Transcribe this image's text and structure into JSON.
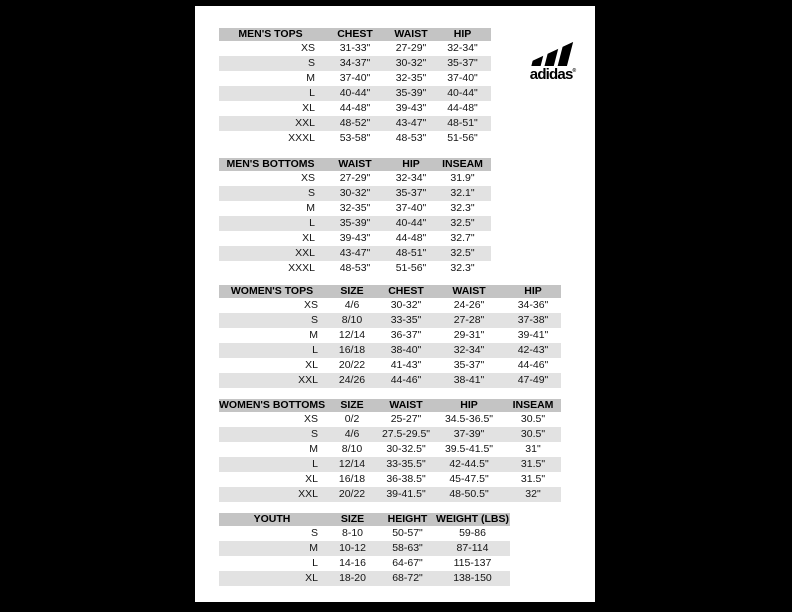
{
  "page": {
    "background_color": "#000000",
    "paper_color": "#ffffff",
    "header_bg": "#c4c4c4",
    "stripe_bg": "#e2e2e2",
    "text_color": "#141414"
  },
  "logo": {
    "brand": "adidas",
    "registered_mark": "®",
    "color": "#000000"
  },
  "tables": [
    {
      "id": "mens-tops",
      "headers": [
        "MEN'S TOPS",
        "CHEST",
        "WAIST",
        "HIP"
      ],
      "rows": [
        [
          "XS",
          "31-33\"",
          "27-29\"",
          "32-34\""
        ],
        [
          "S",
          "34-37\"",
          "30-32\"",
          "35-37\""
        ],
        [
          "M",
          "37-40\"",
          "32-35\"",
          "37-40\""
        ],
        [
          "L",
          "40-44\"",
          "35-39\"",
          "40-44\""
        ],
        [
          "XL",
          "44-48\"",
          "39-43\"",
          "44-48\""
        ],
        [
          "XXL",
          "48-52\"",
          "43-47\"",
          "48-51\""
        ],
        [
          "XXXL",
          "53-58\"",
          "48-53\"",
          "51-56\""
        ]
      ]
    },
    {
      "id": "mens-bottoms",
      "headers": [
        "MEN'S BOTTOMS",
        "WAIST",
        "HIP",
        "INSEAM"
      ],
      "rows": [
        [
          "XS",
          "27-29\"",
          "32-34\"",
          "31.9\""
        ],
        [
          "S",
          "30-32\"",
          "35-37\"",
          "32.1\""
        ],
        [
          "M",
          "32-35\"",
          "37-40\"",
          "32.3\""
        ],
        [
          "L",
          "35-39\"",
          "40-44\"",
          "32.5\""
        ],
        [
          "XL",
          "39-43\"",
          "44-48\"",
          "32.7\""
        ],
        [
          "XXL",
          "43-47\"",
          "48-51\"",
          "32.5\""
        ],
        [
          "XXXL",
          "48-53\"",
          "51-56\"",
          "32.3\""
        ]
      ]
    },
    {
      "id": "womens-tops",
      "headers": [
        "WOMEN'S TOPS",
        "SIZE",
        "CHEST",
        "WAIST",
        "HIP"
      ],
      "rows": [
        [
          "XS",
          "4/6",
          "30-32\"",
          "24-26\"",
          "34-36\""
        ],
        [
          "S",
          "8/10",
          "33-35\"",
          "27-28\"",
          "37-38\""
        ],
        [
          "M",
          "12/14",
          "36-37\"",
          "29-31\"",
          "39-41\""
        ],
        [
          "L",
          "16/18",
          "38-40\"",
          "32-34\"",
          "42-43\""
        ],
        [
          "XL",
          "20/22",
          "41-43\"",
          "35-37\"",
          "44-46\""
        ],
        [
          "XXL",
          "24/26",
          "44-46\"",
          "38-41\"",
          "47-49\""
        ]
      ]
    },
    {
      "id": "womens-bottoms",
      "headers": [
        "WOMEN'S BOTTOMS",
        "SIZE",
        "WAIST",
        "HIP",
        "INSEAM"
      ],
      "rows": [
        [
          "XS",
          "0/2",
          "25-27\"",
          "34.5-36.5\"",
          "30.5\""
        ],
        [
          "S",
          "4/6",
          "27.5-29.5\"",
          "37-39\"",
          "30.5\""
        ],
        [
          "M",
          "8/10",
          "30-32.5\"",
          "39.5-41.5\"",
          "31\""
        ],
        [
          "L",
          "12/14",
          "33-35.5\"",
          "42-44.5\"",
          "31.5\""
        ],
        [
          "XL",
          "16/18",
          "36-38.5\"",
          "45-47.5\"",
          "31.5\""
        ],
        [
          "XXL",
          "20/22",
          "39-41.5\"",
          "48-50.5\"",
          "32\""
        ]
      ]
    },
    {
      "id": "youth",
      "headers": [
        "YOUTH",
        "SIZE",
        "HEIGHT",
        "WEIGHT (LBS)"
      ],
      "rows": [
        [
          "S",
          "8-10",
          "50-57\"",
          "59-86"
        ],
        [
          "M",
          "10-12",
          "58-63\"",
          "87-114"
        ],
        [
          "L",
          "14-16",
          "64-67\"",
          "115-137"
        ],
        [
          "XL",
          "18-20",
          "68-72\"",
          "138-150"
        ]
      ]
    }
  ]
}
